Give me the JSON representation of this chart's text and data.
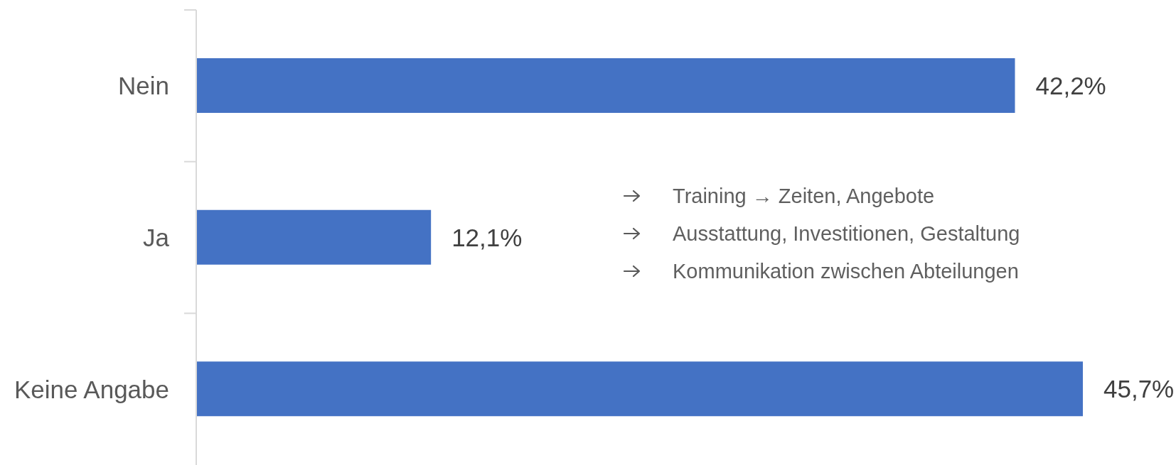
{
  "chart_data": {
    "type": "bar",
    "orientation": "horizontal",
    "categories": [
      "Nein",
      "Ja",
      "Keine Angabe"
    ],
    "values": [
      42.2,
      12.1,
      45.7
    ],
    "value_labels": [
      "42,2%",
      "12,1%",
      "45,7%"
    ],
    "color": "#4472c4",
    "annotations": [
      "Training → Zeiten, Angebote",
      "Ausstattung, Investitionen, Gestaltung",
      "Kommunikation zwischen Abteilungen"
    ]
  }
}
